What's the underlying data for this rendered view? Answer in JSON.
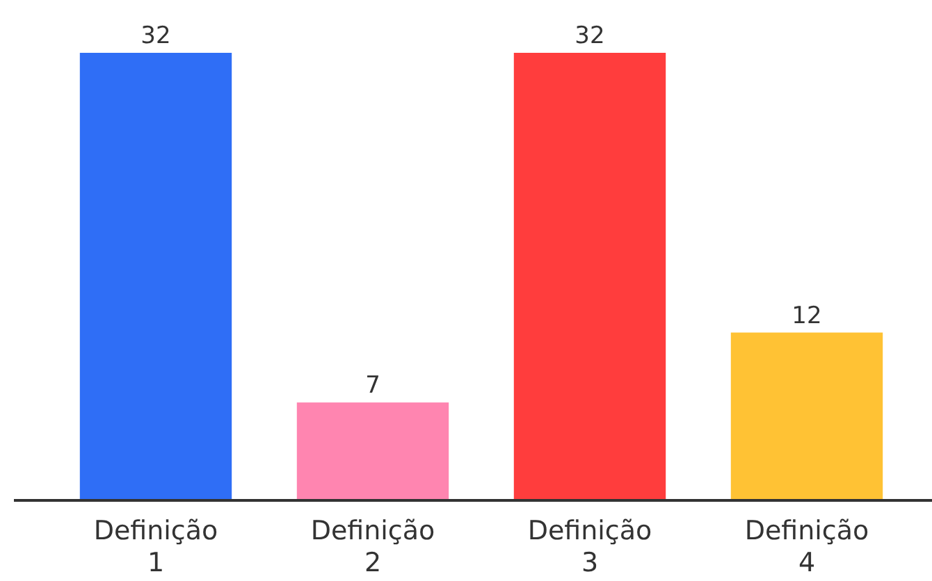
{
  "chart_data": {
    "type": "bar",
    "categories": [
      "Definição 1",
      "Definição 2",
      "Definição 3",
      "Definição 4"
    ],
    "values": [
      32,
      7,
      32,
      12
    ],
    "colors": [
      "#2f6ef6",
      "#ff85b0",
      "#ff3d3d",
      "#ffc234"
    ],
    "data_labels": true
  }
}
